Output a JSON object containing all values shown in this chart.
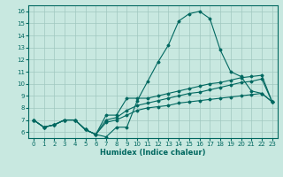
{
  "xlabel": "Humidex (Indice chaleur)",
  "ylabel": "",
  "xlim": [
    -0.5,
    23.5
  ],
  "ylim": [
    5.5,
    16.5
  ],
  "yticks": [
    6,
    7,
    8,
    9,
    10,
    11,
    12,
    13,
    14,
    15,
    16
  ],
  "xticks": [
    0,
    1,
    2,
    3,
    4,
    5,
    6,
    7,
    8,
    9,
    10,
    11,
    12,
    13,
    14,
    15,
    16,
    17,
    18,
    19,
    20,
    21,
    22,
    23
  ],
  "bg_color": "#c8e8e0",
  "line_color": "#006860",
  "grid_color": "#a0c8c0",
  "lines": [
    [
      7.0,
      6.4,
      6.6,
      7.0,
      7.0,
      6.2,
      5.8,
      5.6,
      6.4,
      6.4,
      8.6,
      10.2,
      11.8,
      13.2,
      15.2,
      15.8,
      16.0,
      15.4,
      12.8,
      11.0,
      10.6,
      9.4,
      9.2,
      8.5
    ],
    [
      7.0,
      6.4,
      6.6,
      7.0,
      7.0,
      6.2,
      5.8,
      7.4,
      7.4,
      8.8,
      8.8,
      8.8,
      9.0,
      9.2,
      9.4,
      9.6,
      9.8,
      10.0,
      10.1,
      10.3,
      10.5,
      10.6,
      10.7,
      8.5
    ],
    [
      7.0,
      6.4,
      6.6,
      7.0,
      7.0,
      6.2,
      5.8,
      7.0,
      7.2,
      7.8,
      8.2,
      8.4,
      8.6,
      8.8,
      9.0,
      9.2,
      9.3,
      9.5,
      9.7,
      9.9,
      10.1,
      10.2,
      10.4,
      8.5
    ],
    [
      7.0,
      6.4,
      6.6,
      7.0,
      7.0,
      6.2,
      5.8,
      6.8,
      7.0,
      7.4,
      7.8,
      8.0,
      8.1,
      8.2,
      8.4,
      8.5,
      8.6,
      8.7,
      8.8,
      8.9,
      9.0,
      9.1,
      9.2,
      8.5
    ]
  ],
  "marker": "D",
  "markersize": 1.5,
  "linewidth": 0.8,
  "tick_fontsize": 5.0,
  "xlabel_fontsize": 6.0
}
